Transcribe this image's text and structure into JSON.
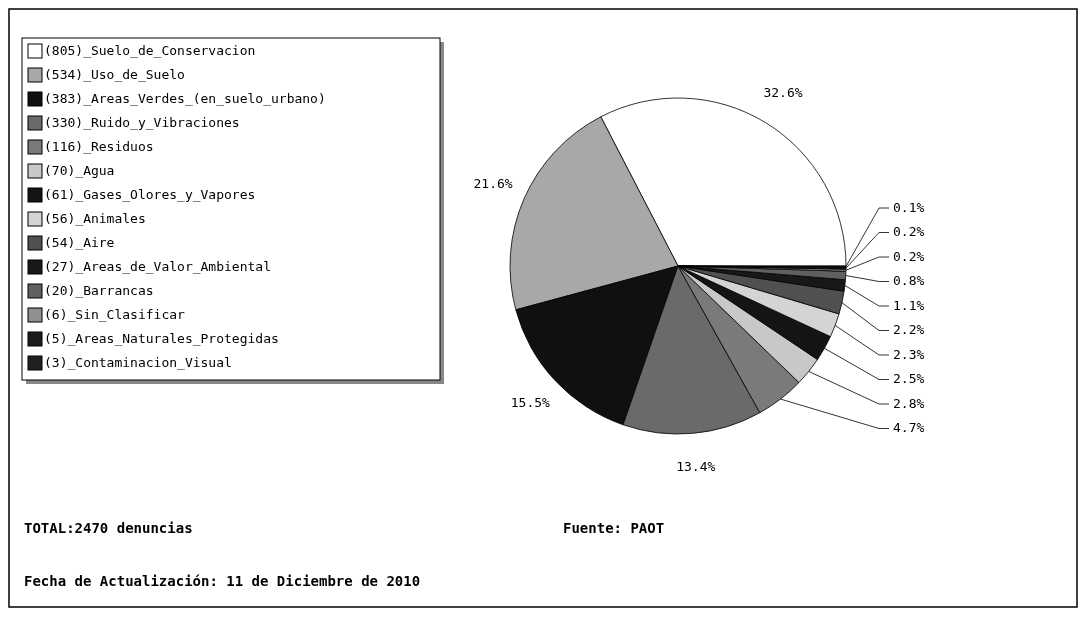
{
  "chart_data": {
    "type": "pie",
    "categories": [
      "(805)_Suelo_de_Conservacion",
      "(534)_Uso_de_Suelo",
      "(383)_Areas_Verdes_(en_suelo_urbano)",
      "(330)_Ruido_y_Vibraciones",
      "(116)_Residuos",
      "(70)_Agua",
      "(61)_Gases_Olores_y_Vapores",
      "(56)_Animales",
      "(54)_Aire",
      "(27)_Areas_de_Valor_Ambiental",
      "(20)_Barrancas",
      "(6)_Sin_Clasificar",
      "(5)_Areas_Naturales_Protegidas",
      "(3)_Contaminacion_Visual"
    ],
    "values": [
      32.6,
      21.6,
      15.5,
      13.4,
      4.7,
      2.8,
      2.5,
      2.3,
      2.2,
      1.1,
      0.8,
      0.2,
      0.2,
      0.1
    ],
    "value_labels": [
      "32.6%",
      "21.6%",
      "15.5%",
      "13.4%",
      "4.7%",
      "2.8%",
      "2.5%",
      "2.3%",
      "2.2%",
      "1.1%",
      "0.8%",
      "0.2%",
      "0.2%",
      "0.1%"
    ],
    "colors": [
      "#ffffff",
      "#a8a8a8",
      "#101010",
      "#6a6a6a",
      "#7a7a7a",
      "#c8c8c8",
      "#141414",
      "#d4d4d4",
      "#505050",
      "#181818",
      "#606060",
      "#909090",
      "#1c1c1c",
      "#202020"
    ],
    "legend": "top left",
    "annotations": [
      "TOTAL:2470 denuncias",
      "Fuente: PAOT",
      "Fecha de Actualización: 11 de Diciembre de 2010"
    ]
  }
}
